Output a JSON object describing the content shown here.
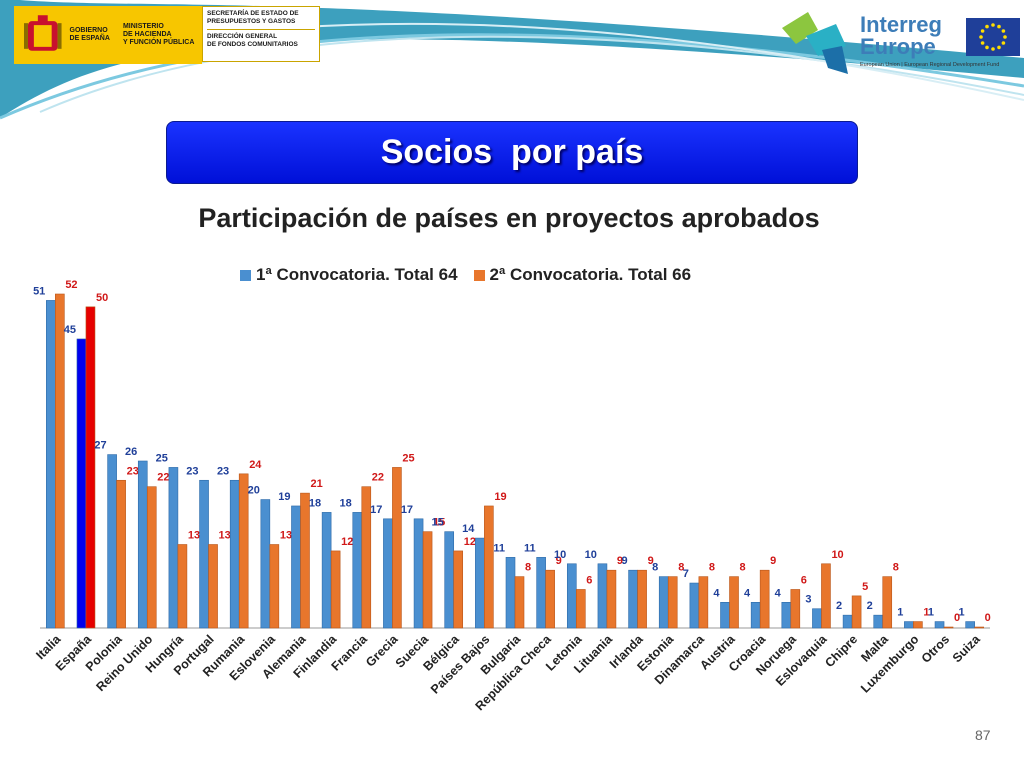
{
  "header": {
    "gov_logo_text": "GOBIERNO\nDE ESPAÑA",
    "ministry_text": "MINISTERIO\nDE HACIENDA\nY FUNCIÓN PÚBLICA",
    "secretariat_text": "SECRETARÍA DE ESTADO DE\nPRESUPUESTOS Y GASTOS",
    "directorate_text": "DIRECCIÓN GENERAL\nDE FONDOS COMUNITARIOS",
    "interreg_line1": "Interreg",
    "interreg_line2": "Europe",
    "interreg_fund": "European Union | European Regional Development Fund"
  },
  "slide_title": "Socios  por país",
  "page_number": "87",
  "colors": {
    "series1": "#4a8fd0",
    "series2": "#e8762c",
    "highlight1": "#0000ee",
    "highlight2": "#e60000",
    "label1": "#1f3f99",
    "label2": "#d01818",
    "title_box": "#0a1fe8"
  },
  "chart_data": {
    "type": "bar",
    "title": "Participación de países en proyectos aprobados",
    "legend_position": "top",
    "grid": false,
    "ylim": [
      0,
      52
    ],
    "categories": [
      "Italia",
      "España",
      "Polonia",
      "Reino Unido",
      "Hungría",
      "Portugal",
      "Rumania",
      "Eslovenia",
      "Alemania",
      "Finlandia",
      "Francia",
      "Grecia",
      "Suecia",
      "Bélgica",
      "Países Bajos",
      "Bulgaria",
      "República Checa",
      "Letonia",
      "Lituania",
      "Irlanda",
      "Estonia",
      "Dinamarca",
      "Austria",
      "Croacia",
      "Noruega",
      "Eslovaquia",
      "Chipre",
      "Malta",
      "Luxemburgo",
      "Otros",
      "Suiza"
    ],
    "series": [
      {
        "name": "1ª Convocatoria. Total 64",
        "values": [
          51,
          45,
          27,
          26,
          25,
          23,
          23,
          20,
          19,
          18,
          18,
          17,
          17,
          15,
          14,
          11,
          11,
          10,
          10,
          9,
          8,
          7,
          4,
          4,
          4,
          3,
          2,
          2,
          1,
          1,
          1
        ]
      },
      {
        "name": "2ª Convocatoria. Total 66",
        "values": [
          52,
          50,
          23,
          22,
          13,
          13,
          24,
          13,
          21,
          12,
          22,
          25,
          15,
          12,
          19,
          8,
          9,
          6,
          9,
          9,
          8,
          8,
          8,
          9,
          6,
          10,
          5,
          8,
          1,
          0,
          0
        ]
      }
    ],
    "highlight_category": "España"
  }
}
